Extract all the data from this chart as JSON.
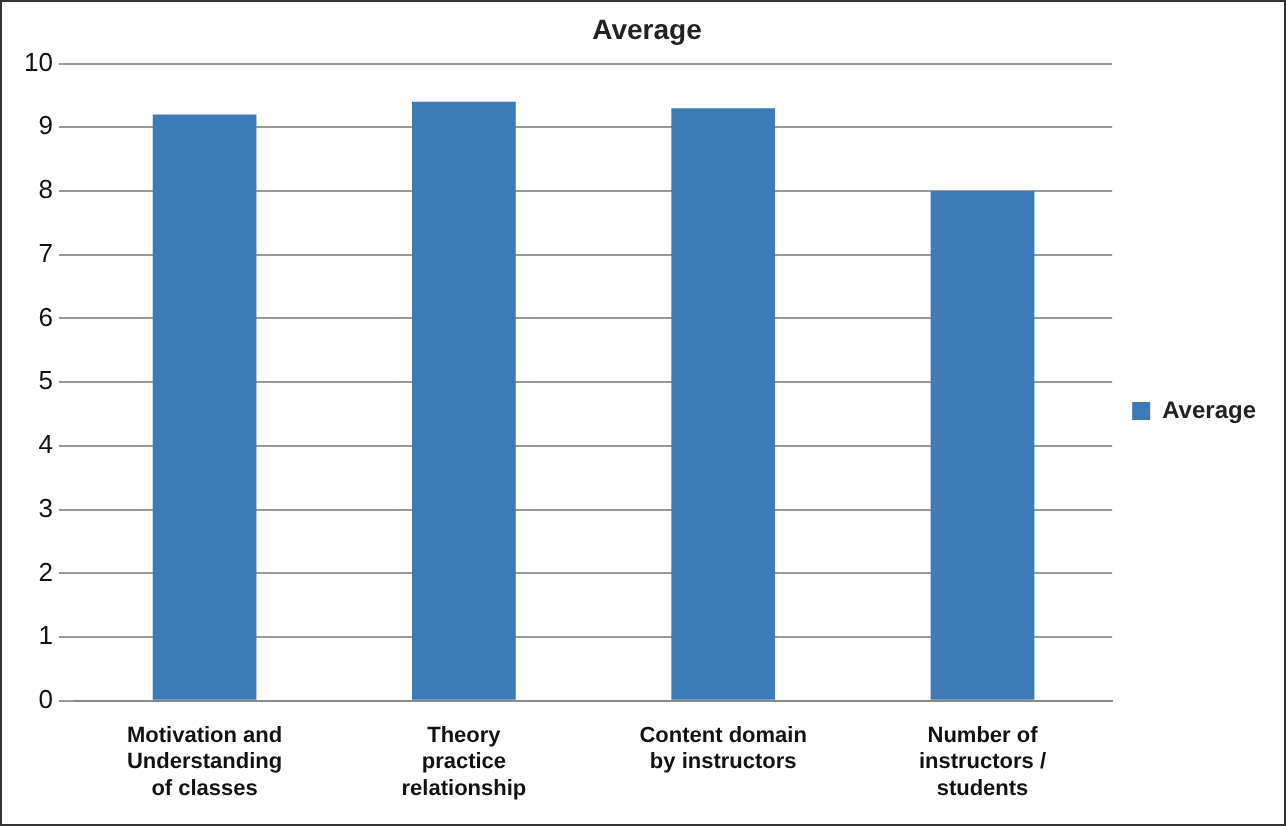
{
  "chart_data": {
    "type": "bar",
    "title": "Average",
    "categories": [
      "Motivation and Understanding of classes",
      "Theory practice relationship",
      "Content domain by instructors",
      "Number of instructors / students"
    ],
    "series": [
      {
        "name": "Average",
        "color": "#3d7ab8",
        "values": [
          9.2,
          9.4,
          9.3,
          8.0
        ]
      }
    ],
    "ylim": [
      0,
      10
    ],
    "yticks": [
      0,
      1,
      2,
      3,
      4,
      5,
      6,
      7,
      8,
      9,
      10
    ],
    "grid": "y",
    "legend": "right"
  }
}
